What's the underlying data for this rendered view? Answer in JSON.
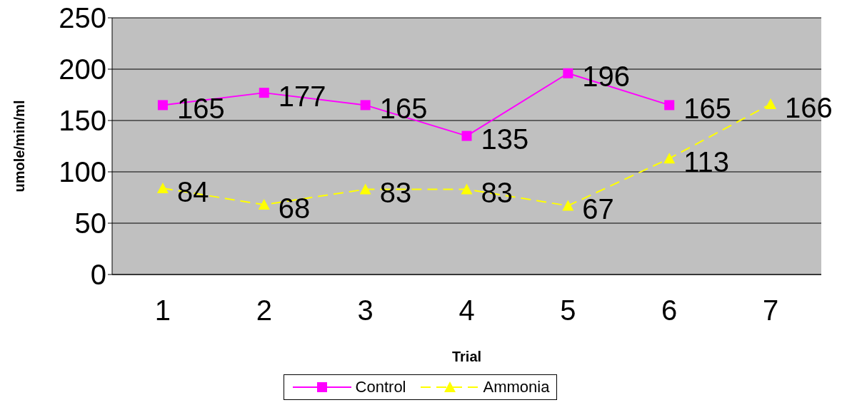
{
  "chart_data": {
    "type": "line",
    "xlabel": "Trial",
    "ylabel": "umole/min/ml",
    "categories": [
      "1",
      "2",
      "3",
      "4",
      "5",
      "6",
      "7"
    ],
    "series": [
      {
        "name": "Control",
        "color": "#ff00ff",
        "marker": "square",
        "line_style": "solid",
        "values": [
          165,
          177,
          165,
          135,
          196,
          165,
          null
        ]
      },
      {
        "name": "Ammonia",
        "color": "#ffff00",
        "marker": "triangle",
        "line_style": "dashed",
        "values": [
          84,
          68,
          83,
          83,
          67,
          113,
          166
        ]
      }
    ],
    "ylim": [
      0,
      250
    ],
    "yticks": [
      0,
      50,
      100,
      150,
      200,
      250
    ],
    "grid": "y",
    "legend": "bottom",
    "data_labels": true
  }
}
